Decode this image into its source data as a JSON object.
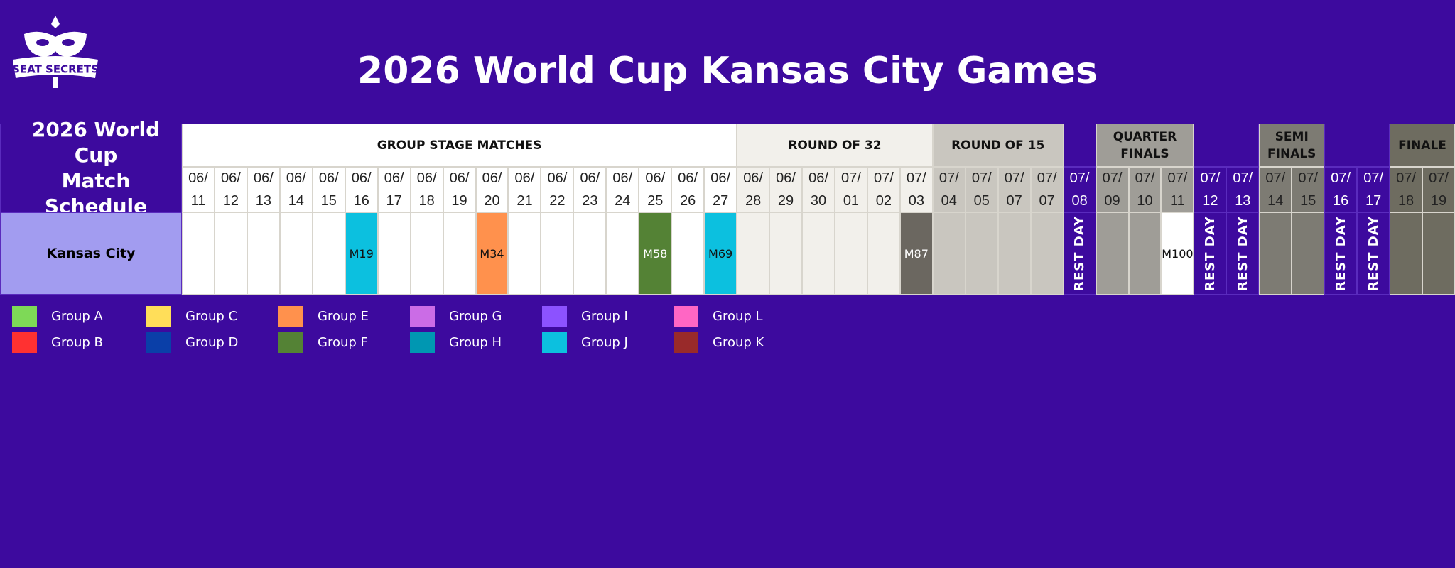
{
  "logo": {
    "text": "SEAT SECRETS"
  },
  "title": "2026 World Cup Kansas City Games",
  "schedule": {
    "heading": [
      "2026 World Cup",
      "Match Schedule"
    ],
    "venue": "Kansas City",
    "stages": [
      {
        "label": "GROUP STAGE MATCHES",
        "color": "#ffffff",
        "dates": [
          "06/11",
          "06/12",
          "06/13",
          "06/14",
          "06/15",
          "06/16",
          "06/17",
          "06/18",
          "06/19",
          "06/20",
          "06/21",
          "06/22",
          "06/23",
          "06/24",
          "06/25",
          "06/26",
          "06/27"
        ],
        "cells": [
          null,
          null,
          null,
          null,
          null,
          {
            "text": "M19",
            "color": "#0cc0df"
          },
          null,
          null,
          null,
          {
            "text": "M34",
            "color": "#ff914d"
          },
          null,
          null,
          null,
          null,
          {
            "text": "M58",
            "color": "#548235"
          },
          null,
          {
            "text": "M69",
            "color": "#0cc0df"
          }
        ]
      },
      {
        "label": "ROUND OF 32",
        "color": "#f2f0eb",
        "dates": [
          "06/28",
          "06/29",
          "06/30",
          "07/01",
          "07/02",
          "07/03"
        ],
        "cells": [
          null,
          null,
          null,
          null,
          null,
          {
            "text": "M87",
            "color": "#6b6760"
          }
        ]
      },
      {
        "label": "ROUND OF 15",
        "color": "#c9c6bf",
        "dates": [
          "07/04",
          "07/05",
          "07/07",
          "07/07"
        ],
        "cells": [
          null,
          null,
          null,
          null
        ]
      },
      {
        "dates": [
          "07/08"
        ],
        "cells": [
          {
            "text": "REST DAY"
          }
        ]
      },
      {
        "label": "QUARTER FINALS",
        "color": "#9f9d97",
        "dates": [
          "07/09",
          "07/10",
          "07/11"
        ],
        "cells": [
          null,
          null,
          {
            "text": "M100",
            "color": "#ffffff"
          }
        ]
      },
      {
        "dates": [
          "07/12",
          "07/13"
        ],
        "cells": [
          {
            "text": "REST DAY"
          },
          {
            "text": "REST DAY"
          }
        ]
      },
      {
        "label": "SEMI FINALS",
        "color": "#7d7b73",
        "dates": [
          "07/14",
          "07/15"
        ],
        "cells": [
          null,
          null
        ]
      },
      {
        "dates": [
          "07/16",
          "07/17"
        ],
        "cells": [
          {
            "text": "REST DAY"
          },
          {
            "text": "REST DAY"
          }
        ]
      },
      {
        "label": "FINALE",
        "color": "#6e6c60",
        "dates": [
          "07/18",
          "07/19"
        ],
        "cells": [
          null,
          null
        ]
      }
    ]
  },
  "legend": [
    {
      "label": "Group A",
      "color": "#7ed957"
    },
    {
      "label": "Group B",
      "color": "#ff3131"
    },
    {
      "label": "Group C",
      "color": "#ffde59"
    },
    {
      "label": "Group D",
      "color": "#0a3fa8"
    },
    {
      "label": "Group E",
      "color": "#ff914d"
    },
    {
      "label": "Group F",
      "color": "#548235"
    },
    {
      "label": "Group G",
      "color": "#cb6ce6"
    },
    {
      "label": "Group H",
      "color": "#0097b2"
    },
    {
      "label": "Group I",
      "color": "#8c52ff"
    },
    {
      "label": "Group J",
      "color": "#0cc0df"
    },
    {
      "label": "Group L",
      "color": "#ff66c4"
    },
    {
      "label": "Group K",
      "color": "#992a2a"
    }
  ]
}
